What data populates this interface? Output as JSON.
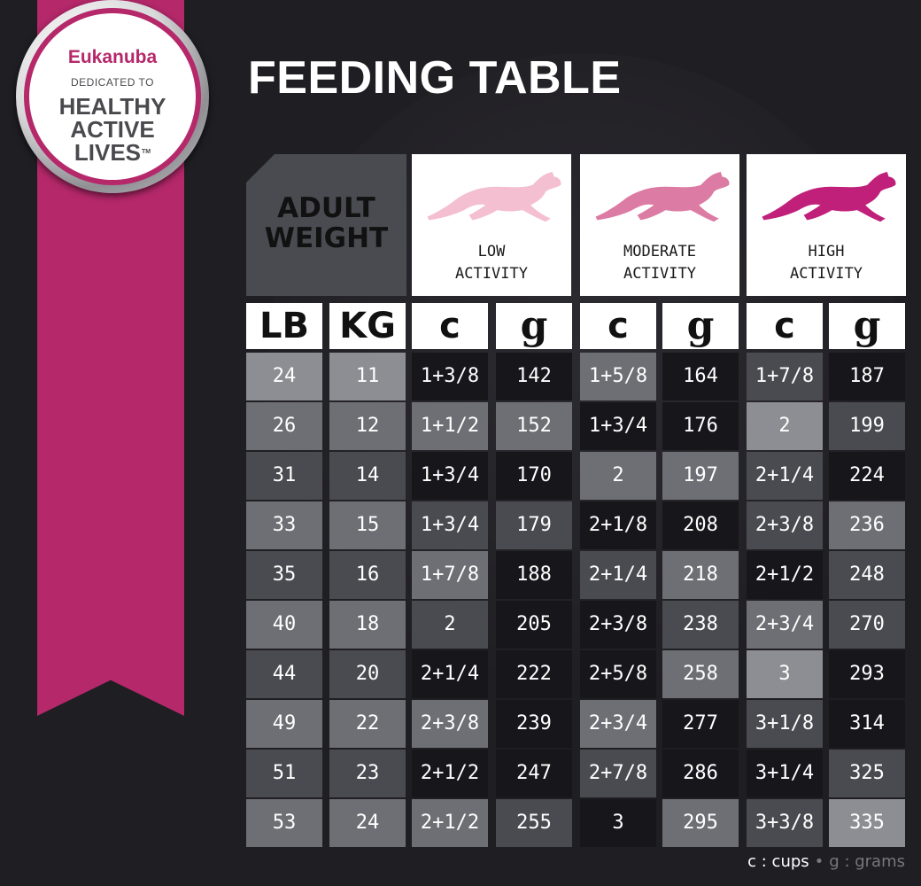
{
  "badge": {
    "brand": "Eukanuba",
    "tagline": "DEDICATED TO",
    "line1": "HEALTHY",
    "line2": "ACTIVE",
    "line3": "LIVES",
    "trademark": "TM"
  },
  "title": "FEEDING TABLE",
  "adult_weight_label": "ADULT WEIGHT",
  "activities": [
    {
      "line1": "LOW",
      "line2": "ACTIVITY",
      "dog_color": "#f4bfd0",
      "icon": "running-dog-icon"
    },
    {
      "line1": "MODERATE",
      "line2": "ACTIVITY",
      "dog_color": "#dc7ba3",
      "icon": "running-dog-icon"
    },
    {
      "line1": "HIGH",
      "line2": "ACTIVITY",
      "dog_color": "#c0207a",
      "icon": "running-dog-icon"
    }
  ],
  "units": {
    "lb": "LB",
    "kg": "KG",
    "cups": "c",
    "grams": "g"
  },
  "rows": [
    {
      "lb": "24",
      "kg": "11",
      "low_c": "1+3/8",
      "low_g": "142",
      "mod_c": "1+5/8",
      "mod_g": "164",
      "high_c": "1+7/8",
      "high_g": "187"
    },
    {
      "lb": "26",
      "kg": "12",
      "low_c": "1+1/2",
      "low_g": "152",
      "mod_c": "1+3/4",
      "mod_g": "176",
      "high_c": "2",
      "high_g": "199"
    },
    {
      "lb": "31",
      "kg": "14",
      "low_c": "1+3/4",
      "low_g": "170",
      "mod_c": "2",
      "mod_g": "197",
      "high_c": "2+1/4",
      "high_g": "224"
    },
    {
      "lb": "33",
      "kg": "15",
      "low_c": "1+3/4",
      "low_g": "179",
      "mod_c": "2+1/8",
      "mod_g": "208",
      "high_c": "2+3/8",
      "high_g": "236"
    },
    {
      "lb": "35",
      "kg": "16",
      "low_c": "1+7/8",
      "low_g": "188",
      "mod_c": "2+1/4",
      "mod_g": "218",
      "high_c": "2+1/2",
      "high_g": "248"
    },
    {
      "lb": "40",
      "kg": "18",
      "low_c": "2",
      "low_g": "205",
      "mod_c": "2+3/8",
      "mod_g": "238",
      "high_c": "2+3/4",
      "high_g": "270"
    },
    {
      "lb": "44",
      "kg": "20",
      "low_c": "2+1/4",
      "low_g": "222",
      "mod_c": "2+5/8",
      "mod_g": "258",
      "high_c": "3",
      "high_g": "293"
    },
    {
      "lb": "49",
      "kg": "22",
      "low_c": "2+3/8",
      "low_g": "239",
      "mod_c": "2+3/4",
      "mod_g": "277",
      "high_c": "3+1/8",
      "high_g": "314"
    },
    {
      "lb": "51",
      "kg": "23",
      "low_c": "2+1/2",
      "low_g": "247",
      "mod_c": "2+7/8",
      "mod_g": "286",
      "high_c": "3+1/4",
      "high_g": "325"
    },
    {
      "lb": "53",
      "kg": "24",
      "low_c": "2+1/2",
      "low_g": "255",
      "mod_c": "3",
      "mod_g": "295",
      "high_c": "3+3/8",
      "high_g": "335"
    }
  ],
  "legend": {
    "cups": "c : cups",
    "grams": "g : grams"
  },
  "colors": {
    "brand_pink": "#b5286a",
    "cell_dark": "#17171b",
    "cell_mid": "#4a4b51",
    "cell_light": "#6e6f75",
    "cell_pale": "#8d8e94"
  }
}
